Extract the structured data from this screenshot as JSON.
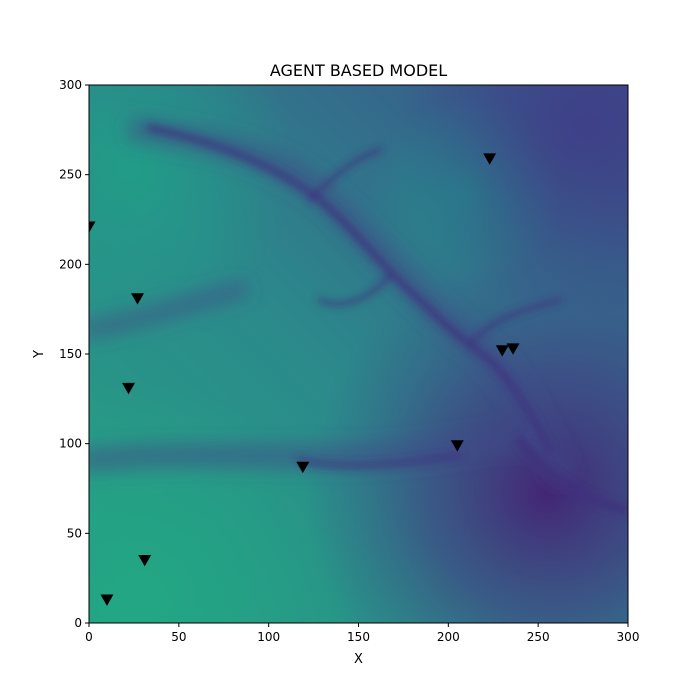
{
  "chart_data": {
    "type": "scatter",
    "title": "AGENT BASED MODEL",
    "xlabel": "X",
    "ylabel": "Y",
    "xlim": [
      0,
      300
    ],
    "ylim": [
      0,
      300
    ],
    "xticks": [
      0,
      50,
      100,
      150,
      200,
      250,
      300
    ],
    "yticks": [
      0,
      50,
      100,
      150,
      200,
      250,
      300
    ],
    "grid": false,
    "background": "terrain heatmap (viridis colormap)",
    "colormap": "viridis",
    "marker": "triangle-down",
    "marker_color": "#000000",
    "points": [
      {
        "x": 223,
        "y": 259
      },
      {
        "x": 0,
        "y": 221
      },
      {
        "x": 27,
        "y": 181
      },
      {
        "x": 230,
        "y": 152
      },
      {
        "x": 236,
        "y": 153
      },
      {
        "x": 22,
        "y": 131
      },
      {
        "x": 205,
        "y": 99
      },
      {
        "x": 119,
        "y": 87
      },
      {
        "x": 31,
        "y": 35
      },
      {
        "x": 10,
        "y": 13
      }
    ]
  }
}
